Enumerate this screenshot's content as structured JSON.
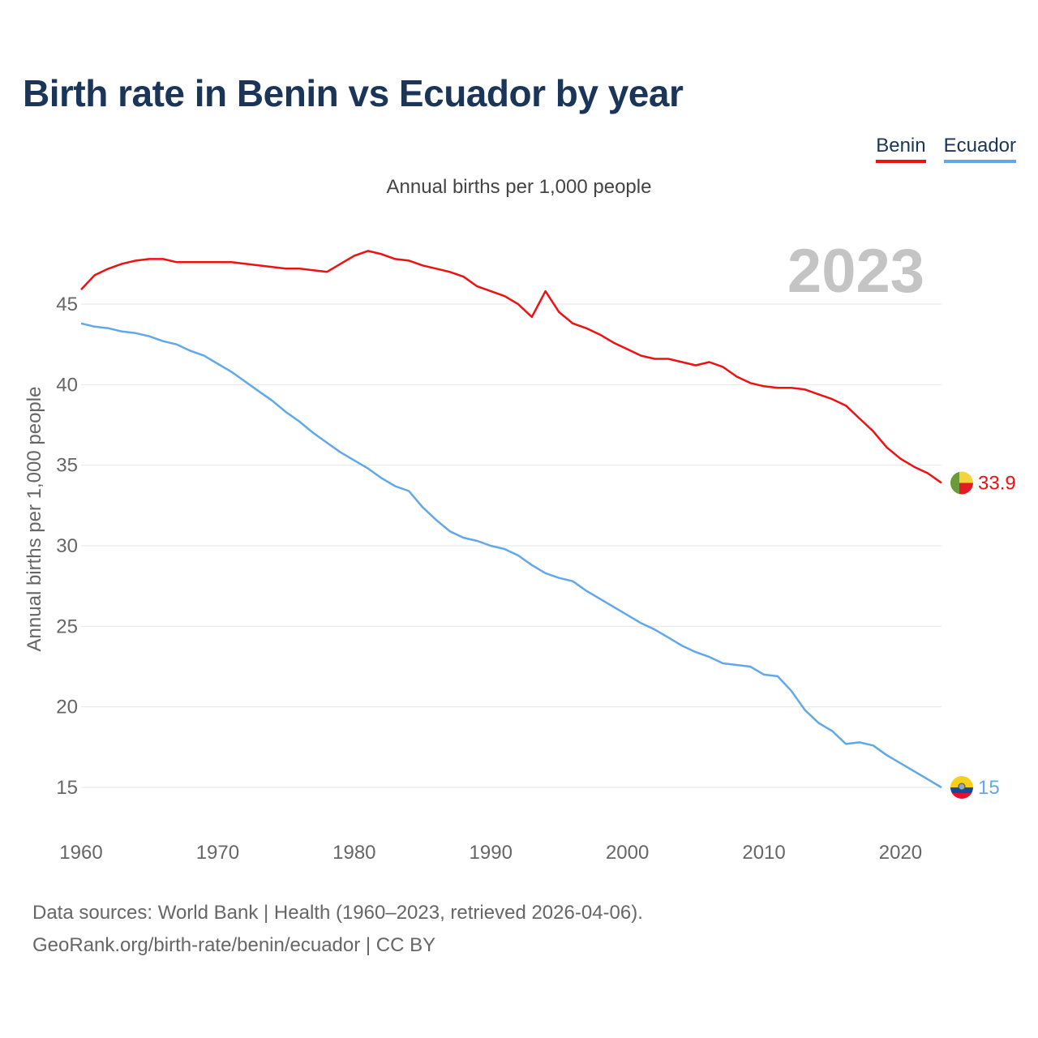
{
  "title": "Birth rate in Benin vs Ecuador by year",
  "subtitle": "Annual births per 1,000 people",
  "year_badge": "2023",
  "legend": [
    {
      "label": "Benin",
      "color": "#ee1111"
    },
    {
      "label": "Ecuador",
      "color": "#62a8e8"
    }
  ],
  "footer": {
    "line1": "Data sources: World Bank | Health (1960–2023, retrieved 2026-04-06).",
    "line2": "GeoRank.org/birth-rate/benin/ecuador | CC BY"
  },
  "end_labels": {
    "benin": "33.9",
    "ecuador": "15"
  },
  "flags": {
    "benin": [
      "#6a9a3a",
      "#f5d33a",
      "#e31b23"
    ],
    "ecuador": [
      "#f7d117",
      "#0e4aa0",
      "#e8102e"
    ]
  },
  "chart_data": {
    "type": "line",
    "title": "Birth rate in Benin vs Ecuador by year",
    "xlabel": "",
    "ylabel": "Annual births per 1,000 people",
    "xlim": [
      1960,
      2023
    ],
    "ylim": [
      13,
      48.5
    ],
    "x_ticks": [
      1960,
      1970,
      1980,
      1990,
      2000,
      2010,
      2020
    ],
    "y_ticks": [
      15,
      20,
      25,
      30,
      35,
      40,
      45
    ],
    "grid": true,
    "x": [
      1960,
      1961,
      1962,
      1963,
      1964,
      1965,
      1966,
      1967,
      1968,
      1969,
      1970,
      1971,
      1972,
      1973,
      1974,
      1975,
      1976,
      1977,
      1978,
      1979,
      1980,
      1981,
      1982,
      1983,
      1984,
      1985,
      1986,
      1987,
      1988,
      1989,
      1990,
      1991,
      1992,
      1993,
      1994,
      1995,
      1996,
      1997,
      1998,
      1999,
      2000,
      2001,
      2002,
      2003,
      2004,
      2005,
      2006,
      2007,
      2008,
      2009,
      2010,
      2011,
      2012,
      2013,
      2014,
      2015,
      2016,
      2017,
      2018,
      2019,
      2020,
      2021,
      2022,
      2023
    ],
    "series": [
      {
        "name": "Benin",
        "color": "#ee1111",
        "values": [
          45.9,
          46.8,
          47.2,
          47.5,
          47.7,
          47.8,
          47.8,
          47.6,
          47.6,
          47.6,
          47.6,
          47.6,
          47.5,
          47.4,
          47.3,
          47.2,
          47.2,
          47.1,
          47.0,
          47.5,
          48.0,
          48.3,
          48.1,
          47.8,
          47.7,
          47.4,
          47.2,
          47.0,
          46.7,
          46.1,
          45.8,
          45.5,
          45.0,
          44.2,
          45.8,
          44.5,
          43.8,
          43.5,
          43.1,
          42.6,
          42.2,
          41.8,
          41.6,
          41.6,
          41.4,
          41.2,
          41.4,
          41.1,
          40.5,
          40.1,
          39.9,
          39.8,
          39.8,
          39.7,
          39.4,
          39.1,
          38.7,
          37.9,
          37.1,
          36.1,
          35.4,
          34.9,
          34.5,
          33.9
        ]
      },
      {
        "name": "Ecuador",
        "color": "#62a8e8",
        "values": [
          43.8,
          43.6,
          43.5,
          43.3,
          43.2,
          43.0,
          42.7,
          42.5,
          42.1,
          41.8,
          41.3,
          40.8,
          40.2,
          39.6,
          39.0,
          38.3,
          37.7,
          37.0,
          36.4,
          35.8,
          35.3,
          34.8,
          34.2,
          33.7,
          33.4,
          32.4,
          31.6,
          30.9,
          30.5,
          30.3,
          30.0,
          29.8,
          29.4,
          28.8,
          28.3,
          28.0,
          27.8,
          27.2,
          26.7,
          26.2,
          25.7,
          25.2,
          24.8,
          24.3,
          23.8,
          23.4,
          23.1,
          22.7,
          22.6,
          22.5,
          22.0,
          21.9,
          21.0,
          19.8,
          19.0,
          18.5,
          17.7,
          17.8,
          17.6,
          17.0,
          16.5,
          16.0,
          15.5,
          15.0
        ]
      }
    ]
  }
}
